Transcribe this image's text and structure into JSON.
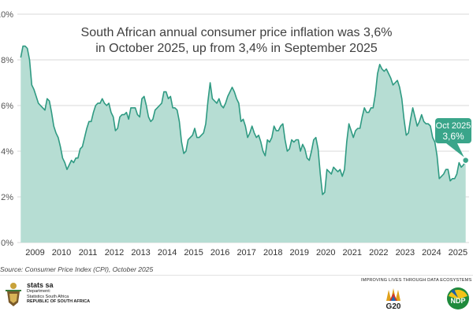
{
  "chart_data": {
    "type": "area",
    "title_lines": [
      "South African annual consumer price inflation was 3,6%",
      "in October 2025, up from 3,4% in September 2025"
    ],
    "y_ticks": [
      "0%",
      "2%",
      "4%",
      "6%",
      "8%",
      "10%"
    ],
    "ylim": [
      0,
      10
    ],
    "x_ticks": [
      "2009",
      "2010",
      "2011",
      "2012",
      "2013",
      "2014",
      "2015",
      "2016",
      "2017",
      "2018",
      "2019",
      "2020",
      "2021",
      "2022",
      "2023",
      "2024",
      "2025"
    ],
    "grid": true,
    "series": [
      {
        "color": "#2f9a82",
        "fill": "#b6ddd3",
        "points": [
          [
            "2008-12",
            8.1
          ],
          [
            "2009-01",
            8.6
          ],
          [
            "2009-02",
            8.6
          ],
          [
            "2009-03",
            8.5
          ],
          [
            "2009-04",
            8.0
          ],
          [
            "2009-05",
            6.9
          ],
          [
            "2009-06",
            6.7
          ],
          [
            "2009-07",
            6.4
          ],
          [
            "2009-08",
            6.1
          ],
          [
            "2009-09",
            6.0
          ],
          [
            "2009-10",
            5.9
          ],
          [
            "2009-11",
            5.8
          ],
          [
            "2009-12",
            6.3
          ],
          [
            "2010-01",
            6.2
          ],
          [
            "2010-02",
            5.7
          ],
          [
            "2010-03",
            5.1
          ],
          [
            "2010-04",
            4.8
          ],
          [
            "2010-05",
            4.6
          ],
          [
            "2010-06",
            4.2
          ],
          [
            "2010-07",
            3.7
          ],
          [
            "2010-08",
            3.5
          ],
          [
            "2010-09",
            3.2
          ],
          [
            "2010-10",
            3.4
          ],
          [
            "2010-11",
            3.6
          ],
          [
            "2010-12",
            3.5
          ],
          [
            "2011-01",
            3.7
          ],
          [
            "2011-02",
            3.7
          ],
          [
            "2011-03",
            4.1
          ],
          [
            "2011-04",
            4.2
          ],
          [
            "2011-05",
            4.6
          ],
          [
            "2011-06",
            5.0
          ],
          [
            "2011-07",
            5.3
          ],
          [
            "2011-08",
            5.3
          ],
          [
            "2011-09",
            5.7
          ],
          [
            "2011-10",
            6.0
          ],
          [
            "2011-11",
            6.1
          ],
          [
            "2011-12",
            6.1
          ],
          [
            "2012-01",
            6.3
          ],
          [
            "2012-02",
            6.1
          ],
          [
            "2012-03",
            6.0
          ],
          [
            "2012-04",
            6.1
          ],
          [
            "2012-05",
            5.7
          ],
          [
            "2012-06",
            5.5
          ],
          [
            "2012-07",
            4.9
          ],
          [
            "2012-08",
            5.0
          ],
          [
            "2012-09",
            5.5
          ],
          [
            "2012-10",
            5.6
          ],
          [
            "2012-11",
            5.6
          ],
          [
            "2012-12",
            5.7
          ],
          [
            "2013-01",
            5.4
          ],
          [
            "2013-02",
            5.9
          ],
          [
            "2013-03",
            5.9
          ],
          [
            "2013-04",
            5.9
          ],
          [
            "2013-05",
            5.6
          ],
          [
            "2013-06",
            5.5
          ],
          [
            "2013-07",
            6.3
          ],
          [
            "2013-08",
            6.4
          ],
          [
            "2013-09",
            6.0
          ],
          [
            "2013-10",
            5.5
          ],
          [
            "2013-11",
            5.3
          ],
          [
            "2013-12",
            5.4
          ],
          [
            "2014-01",
            5.8
          ],
          [
            "2014-02",
            5.9
          ],
          [
            "2014-03",
            6.0
          ],
          [
            "2014-04",
            6.1
          ],
          [
            "2014-05",
            6.6
          ],
          [
            "2014-06",
            6.6
          ],
          [
            "2014-07",
            6.3
          ],
          [
            "2014-08",
            6.4
          ],
          [
            "2014-09",
            5.9
          ],
          [
            "2014-10",
            5.9
          ],
          [
            "2014-11",
            5.8
          ],
          [
            "2014-12",
            5.3
          ],
          [
            "2015-01",
            4.4
          ],
          [
            "2015-02",
            3.9
          ],
          [
            "2015-03",
            4.0
          ],
          [
            "2015-04",
            4.5
          ],
          [
            "2015-05",
            4.6
          ],
          [
            "2015-06",
            4.7
          ],
          [
            "2015-07",
            5.0
          ],
          [
            "2015-08",
            4.6
          ],
          [
            "2015-09",
            4.6
          ],
          [
            "2015-10",
            4.7
          ],
          [
            "2015-11",
            4.8
          ],
          [
            "2015-12",
            5.2
          ],
          [
            "2016-01",
            6.2
          ],
          [
            "2016-02",
            7.0
          ],
          [
            "2016-03",
            6.3
          ],
          [
            "2016-04",
            6.2
          ],
          [
            "2016-05",
            6.1
          ],
          [
            "2016-06",
            6.3
          ],
          [
            "2016-07",
            6.0
          ],
          [
            "2016-08",
            5.9
          ],
          [
            "2016-09",
            6.1
          ],
          [
            "2016-10",
            6.4
          ],
          [
            "2016-11",
            6.6
          ],
          [
            "2016-12",
            6.8
          ],
          [
            "2017-01",
            6.6
          ],
          [
            "2017-02",
            6.3
          ],
          [
            "2017-03",
            6.1
          ],
          [
            "2017-04",
            5.3
          ],
          [
            "2017-05",
            5.4
          ],
          [
            "2017-06",
            5.1
          ],
          [
            "2017-07",
            4.6
          ],
          [
            "2017-08",
            4.8
          ],
          [
            "2017-09",
            5.1
          ],
          [
            "2017-10",
            4.8
          ],
          [
            "2017-11",
            4.6
          ],
          [
            "2017-12",
            4.7
          ],
          [
            "2018-01",
            4.4
          ],
          [
            "2018-02",
            4.0
          ],
          [
            "2018-03",
            3.8
          ],
          [
            "2018-04",
            4.5
          ],
          [
            "2018-05",
            4.4
          ],
          [
            "2018-06",
            4.6
          ],
          [
            "2018-07",
            5.1
          ],
          [
            "2018-08",
            4.9
          ],
          [
            "2018-09",
            4.9
          ],
          [
            "2018-10",
            5.1
          ],
          [
            "2018-11",
            5.2
          ],
          [
            "2018-12",
            4.5
          ],
          [
            "2019-01",
            4.0
          ],
          [
            "2019-02",
            4.1
          ],
          [
            "2019-03",
            4.5
          ],
          [
            "2019-04",
            4.4
          ],
          [
            "2019-05",
            4.5
          ],
          [
            "2019-06",
            4.5
          ],
          [
            "2019-07",
            4.0
          ],
          [
            "2019-08",
            4.3
          ],
          [
            "2019-09",
            4.1
          ],
          [
            "2019-10",
            3.7
          ],
          [
            "2019-11",
            3.6
          ],
          [
            "2019-12",
            4.0
          ],
          [
            "2020-01",
            4.5
          ],
          [
            "2020-02",
            4.6
          ],
          [
            "2020-03",
            4.1
          ],
          [
            "2020-04",
            3.0
          ],
          [
            "2020-05",
            2.1
          ],
          [
            "2020-06",
            2.2
          ],
          [
            "2020-07",
            3.2
          ],
          [
            "2020-08",
            3.1
          ],
          [
            "2020-09",
            3.0
          ],
          [
            "2020-10",
            3.3
          ],
          [
            "2020-11",
            3.2
          ],
          [
            "2020-12",
            3.1
          ],
          [
            "2021-01",
            3.2
          ],
          [
            "2021-02",
            2.9
          ],
          [
            "2021-03",
            3.2
          ],
          [
            "2021-04",
            4.4
          ],
          [
            "2021-05",
            5.2
          ],
          [
            "2021-06",
            4.9
          ],
          [
            "2021-07",
            4.6
          ],
          [
            "2021-08",
            4.9
          ],
          [
            "2021-09",
            5.0
          ],
          [
            "2021-10",
            5.0
          ],
          [
            "2021-11",
            5.5
          ],
          [
            "2021-12",
            5.9
          ],
          [
            "2022-01",
            5.7
          ],
          [
            "2022-02",
            5.7
          ],
          [
            "2022-03",
            5.9
          ],
          [
            "2022-04",
            5.9
          ],
          [
            "2022-05",
            6.5
          ],
          [
            "2022-06",
            7.4
          ],
          [
            "2022-07",
            7.8
          ],
          [
            "2022-08",
            7.6
          ],
          [
            "2022-09",
            7.5
          ],
          [
            "2022-10",
            7.6
          ],
          [
            "2022-11",
            7.4
          ],
          [
            "2022-12",
            7.2
          ],
          [
            "2023-01",
            6.9
          ],
          [
            "2023-02",
            7.0
          ],
          [
            "2023-03",
            7.1
          ],
          [
            "2023-04",
            6.8
          ],
          [
            "2023-05",
            6.3
          ],
          [
            "2023-06",
            5.4
          ],
          [
            "2023-07",
            4.7
          ],
          [
            "2023-08",
            4.8
          ],
          [
            "2023-09",
            5.4
          ],
          [
            "2023-10",
            5.9
          ],
          [
            "2023-11",
            5.5
          ],
          [
            "2023-12",
            5.1
          ],
          [
            "2024-01",
            5.3
          ],
          [
            "2024-02",
            5.6
          ],
          [
            "2024-03",
            5.3
          ],
          [
            "2024-04",
            5.2
          ],
          [
            "2024-05",
            5.2
          ],
          [
            "2024-06",
            5.1
          ],
          [
            "2024-07",
            4.6
          ],
          [
            "2024-08",
            4.4
          ],
          [
            "2024-09",
            3.8
          ],
          [
            "2024-10",
            2.8
          ],
          [
            "2024-11",
            2.9
          ],
          [
            "2024-12",
            3.0
          ],
          [
            "2025-01",
            3.2
          ],
          [
            "2025-02",
            3.2
          ],
          [
            "2025-03",
            2.7
          ],
          [
            "2025-04",
            2.8
          ],
          [
            "2025-05",
            2.8
          ],
          [
            "2025-06",
            3.0
          ],
          [
            "2025-07",
            3.5
          ],
          [
            "2025-08",
            3.3
          ],
          [
            "2025-09",
            3.4
          ],
          [
            "2025-10",
            3.6
          ]
        ]
      }
    ],
    "callout": {
      "label": "Oct 2025",
      "value": "3,6%"
    }
  },
  "footer": {
    "source": "Source: Consumer Price Index (CPI), October 2025",
    "org_name": "stats sa",
    "org_department": "Department:",
    "org_unit": "Statistics South Africa",
    "org_country": "REPUBLIC OF SOUTH AFRICA",
    "tagline": "IMPROVING LIVES THROUGH DATA ECOSYSTEMS",
    "g20": "G20",
    "ndp": "NDP"
  },
  "colors": {
    "accent": "#2f9a82",
    "area_fill": "#b6ddd3",
    "callout_bg": "#3aa58a"
  }
}
